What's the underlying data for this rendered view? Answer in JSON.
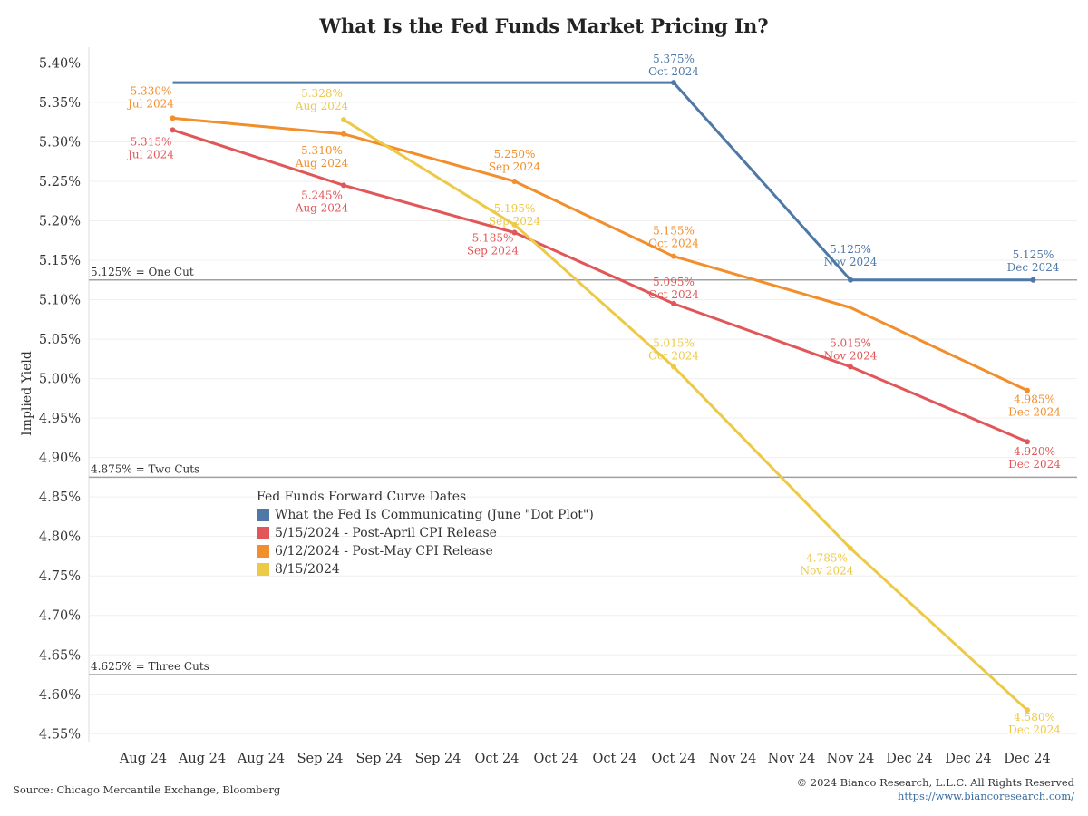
{
  "title": "What Is the Fed Funds Market Pricing In?",
  "source": "Source: Chicago Mercantile Exchange, Bloomberg",
  "copyright": "© 2024 Bianco Research, L.L.C. All Rights Reserved",
  "url": "https://www.biancoresearch.com/",
  "legend": {
    "title": "Fed Funds Forward Curve Dates",
    "items": [
      {
        "label": "What the Fed Is Communicating (June \"Dot Plot\")",
        "color": "#4e79a7"
      },
      {
        "label": "5/15/2024 - Post-April CPI Release",
        "color": "#e15759"
      },
      {
        "label": "6/12/2024 - Post-May CPI Release",
        "color": "#f28e2b"
      },
      {
        "label": "8/15/2024",
        "color": "#edc948"
      }
    ]
  },
  "chart_data": {
    "type": "line",
    "ylabel": "Implied Yield",
    "ylim": [
      4.54,
      5.42
    ],
    "yticks": [
      "5.40%",
      "5.35%",
      "5.30%",
      "5.25%",
      "5.20%",
      "5.15%",
      "5.10%",
      "5.05%",
      "5.00%",
      "4.95%",
      "4.90%",
      "4.85%",
      "4.80%",
      "4.75%",
      "4.70%",
      "4.65%",
      "4.60%",
      "4.55%"
    ],
    "xticks": [
      "Aug 24",
      "Aug 24",
      "Aug 24",
      "Sep 24",
      "Sep 24",
      "Sep 24",
      "Oct 24",
      "Oct 24",
      "Oct 24",
      "Oct 24",
      "Nov 24",
      "Nov 24",
      "Nov 24",
      "Dec 24",
      "Dec 24",
      "Dec 24"
    ],
    "reference_lines": [
      {
        "value": 5.125,
        "label": "5.125% = One Cut"
      },
      {
        "value": 4.875,
        "label": "4.875% = Two Cuts"
      },
      {
        "value": 4.625,
        "label": "4.625% = Three Cuts"
      }
    ],
    "series": [
      {
        "name": "What the Fed Is Communicating (June \"Dot Plot\")",
        "color": "#4e79a7",
        "points": [
          {
            "x": 0.5,
            "y": 5.375
          },
          {
            "x": 9,
            "y": 5.375,
            "label": "5.375%",
            "sub": "Oct 2024"
          },
          {
            "x": 12,
            "y": 5.125,
            "label": "5.125%",
            "sub": "Nov 2024"
          },
          {
            "x": 15.1,
            "y": 5.125,
            "label": "5.125%",
            "sub": "Dec 2024"
          }
        ]
      },
      {
        "name": "5/15/2024 - Post-April CPI Release",
        "color": "#e15759",
        "points": [
          {
            "x": 0.5,
            "y": 5.315,
            "label": "5.315%",
            "sub": "Jul 2024"
          },
          {
            "x": 3.4,
            "y": 5.245,
            "label": "5.245%",
            "sub": "Aug 2024"
          },
          {
            "x": 6.3,
            "y": 5.185,
            "label": "5.185%",
            "sub": "Sep 2024"
          },
          {
            "x": 9,
            "y": 5.095,
            "label": "5.095%",
            "sub": "Oct 2024"
          },
          {
            "x": 12,
            "y": 5.015,
            "label": "5.015%",
            "sub": "Nov 2024"
          },
          {
            "x": 15,
            "y": 4.92,
            "label": "4.920%",
            "sub": "Dec 2024"
          }
        ]
      },
      {
        "name": "6/12/2024 - Post-May CPI Release",
        "color": "#f28e2b",
        "points": [
          {
            "x": 0.5,
            "y": 5.33,
            "label": "5.330%",
            "sub": "Jul 2024"
          },
          {
            "x": 3.4,
            "y": 5.31,
            "label": "5.310%",
            "sub": "Aug 2024"
          },
          {
            "x": 6.3,
            "y": 5.25,
            "label": "5.250%",
            "sub": "Sep 2024"
          },
          {
            "x": 9,
            "y": 5.155,
            "label": "5.155%",
            "sub": "Oct 2024"
          },
          {
            "x": 12,
            "y": 5.09
          },
          {
            "x": 15,
            "y": 4.985,
            "label": "4.985%",
            "sub": "Dec 2024"
          }
        ]
      },
      {
        "name": "8/15/2024",
        "color": "#edc948",
        "points": [
          {
            "x": 3.4,
            "y": 5.328,
            "label": "5.328%",
            "sub": "Aug 2024"
          },
          {
            "x": 6.3,
            "y": 5.195,
            "label": "5.195%",
            "sub": "Sep 2024"
          },
          {
            "x": 9,
            "y": 5.015,
            "label": "5.015%",
            "sub": "Oct 2024"
          },
          {
            "x": 12,
            "y": 4.785,
            "label": "4.785%",
            "sub": "Nov 2024"
          },
          {
            "x": 15,
            "y": 4.58,
            "label": "4.580%",
            "sub": "Dec 2024"
          }
        ]
      }
    ]
  }
}
